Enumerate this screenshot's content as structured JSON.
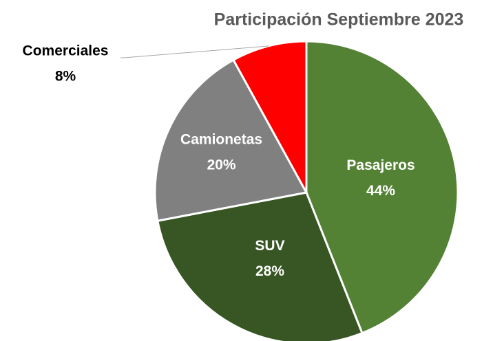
{
  "chart_data": {
    "type": "pie",
    "title": "Participación Septiembre 2023",
    "categories": [
      "Pasajeros",
      "SUV",
      "Camionetas",
      "Comerciales"
    ],
    "values": [
      44,
      28,
      20,
      8
    ],
    "value_labels": [
      "44%",
      "28%",
      "20%",
      "8%"
    ],
    "colors": [
      "#548235",
      "#375623",
      "#808080",
      "#ff0000"
    ]
  }
}
